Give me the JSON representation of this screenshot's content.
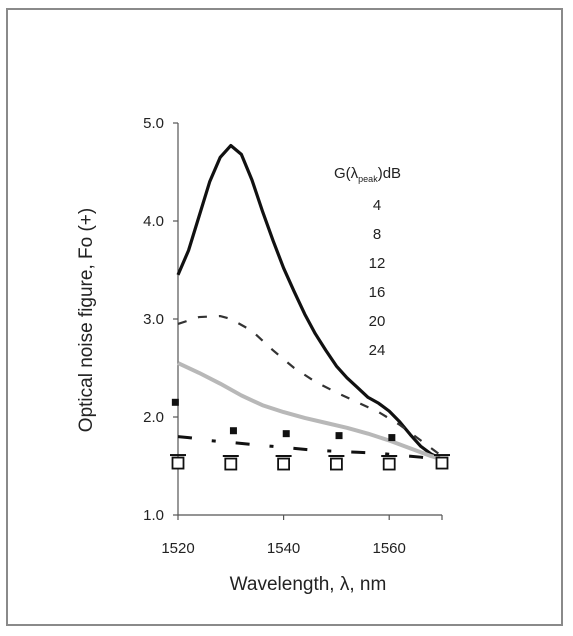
{
  "chart_data": {
    "type": "line",
    "title": "",
    "xlabel": "Wavelength, λ, nm",
    "ylabel": "Optical noise figure, Fo (+)",
    "xlim": [
      1520,
      1570
    ],
    "ylim": [
      1.0,
      5.0
    ],
    "xticks": [
      "1520",
      "1540",
      "1560"
    ],
    "yticks": [
      "1.0",
      "2.0",
      "3.0",
      "4.0",
      "5.0"
    ],
    "legend_title": "G(λpeak)dB",
    "legend_title_main": "G(λ",
    "legend_title_sub": "peak",
    "legend_title_tail": ")dB",
    "legend_labels": [
      "4",
      "8",
      "12",
      "16",
      "20",
      "24"
    ],
    "legend_position": "top-right",
    "series": [
      {
        "name": "24",
        "style": "solid-thick",
        "color": "#111111",
        "x": [
          1520,
          1522,
          1524,
          1526,
          1528,
          1530,
          1532,
          1534,
          1536,
          1538,
          1540,
          1542,
          1544,
          1546,
          1548,
          1550,
          1552,
          1554,
          1556,
          1558,
          1560,
          1562,
          1564,
          1566,
          1568,
          1570
        ],
        "y": [
          3.45,
          3.7,
          4.05,
          4.4,
          4.65,
          4.77,
          4.68,
          4.42,
          4.1,
          3.8,
          3.52,
          3.28,
          3.05,
          2.85,
          2.68,
          2.52,
          2.4,
          2.3,
          2.2,
          2.14,
          2.06,
          1.95,
          1.82,
          1.7,
          1.62,
          1.57
        ]
      },
      {
        "name": "20",
        "style": "dashed",
        "color": "#333333",
        "x": [
          1520,
          1524,
          1528,
          1530,
          1534,
          1538,
          1542,
          1546,
          1550,
          1554,
          1558,
          1562,
          1566,
          1570
        ],
        "y": [
          2.95,
          3.02,
          3.03,
          3.0,
          2.88,
          2.68,
          2.5,
          2.36,
          2.25,
          2.15,
          2.05,
          1.92,
          1.76,
          1.6
        ]
      },
      {
        "name": "16",
        "style": "solid-gray",
        "color": "#b8b8b8",
        "x": [
          1520,
          1524,
          1528,
          1532,
          1536,
          1540,
          1544,
          1548,
          1552,
          1556,
          1560,
          1564,
          1568,
          1570
        ],
        "y": [
          2.55,
          2.45,
          2.34,
          2.22,
          2.12,
          2.05,
          1.99,
          1.94,
          1.89,
          1.83,
          1.76,
          1.68,
          1.6,
          1.57
        ]
      },
      {
        "name": "12",
        "style": "dash-dot",
        "color": "#111111",
        "x": [
          1520,
          1522,
          1526,
          1530,
          1534,
          1538,
          1542,
          1546,
          1550,
          1554,
          1558,
          1562,
          1566,
          1570
        ],
        "y": [
          1.8,
          1.79,
          1.76,
          1.74,
          1.72,
          1.7,
          1.68,
          1.66,
          1.65,
          1.64,
          1.63,
          1.61,
          1.59,
          1.56
        ]
      },
      {
        "name": "8",
        "style": "scatter-mixed",
        "color": "#111111",
        "x": [
          1519.5,
          1530.5,
          1540.5,
          1550.5,
          1560.5
        ],
        "y": [
          2.15,
          1.86,
          1.83,
          1.81,
          1.79
        ]
      },
      {
        "name": "4",
        "style": "open-squares",
        "color": "#111111",
        "x": [
          1520,
          1530,
          1540,
          1550,
          1560,
          1570
        ],
        "y": [
          1.53,
          1.52,
          1.52,
          1.52,
          1.52,
          1.53
        ]
      }
    ]
  }
}
